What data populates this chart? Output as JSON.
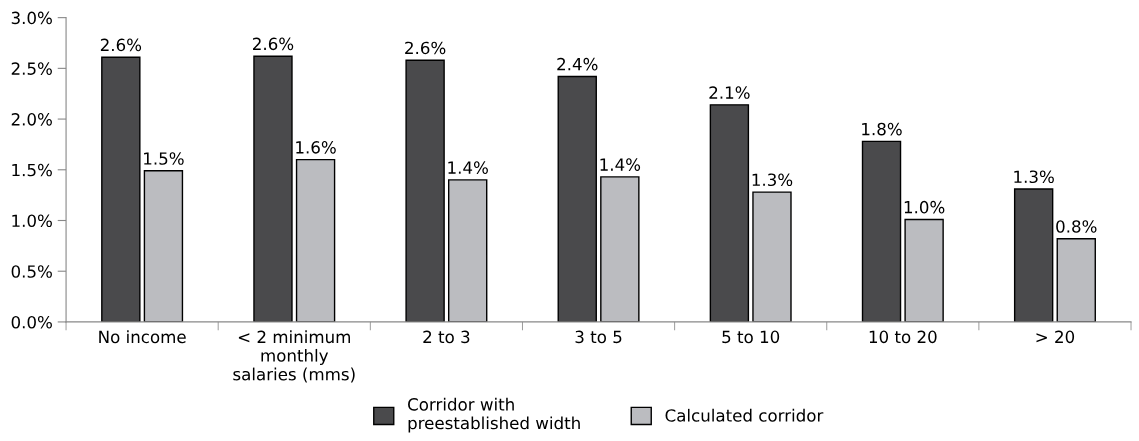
{
  "chart_data": {
    "type": "bar",
    "categories": [
      "No income",
      "< 2 minimum\nmonthly\nsalaries (mms)",
      "2 to 3",
      "3 to 5",
      "5 to 10",
      "10 to 20",
      "> 20"
    ],
    "series": [
      {
        "name": "Corridor with\npreestablished width",
        "color": "#4a4a4c",
        "values": [
          2.61,
          2.62,
          2.58,
          2.42,
          2.14,
          1.78,
          1.31
        ],
        "value_labels": [
          "2.6%",
          "2.6%",
          "2.6%",
          "2.4%",
          "2.1%",
          "1.8%",
          "1.3%"
        ]
      },
      {
        "name": "Calculated corridor",
        "color": "#bbbcc0",
        "values": [
          1.49,
          1.6,
          1.4,
          1.43,
          1.28,
          1.01,
          0.82
        ],
        "value_labels": [
          "1.5%",
          "1.6%",
          "1.4%",
          "1.4%",
          "1.3%",
          "1.0%",
          "0.8%"
        ]
      }
    ],
    "ylim": [
      0,
      3
    ],
    "yticks": [
      {
        "value": 0,
        "label": "0.0%"
      },
      {
        "value": 0.5,
        "label": "0.5%"
      },
      {
        "value": 1,
        "label": "1.0%"
      },
      {
        "value": 1.5,
        "label": "1.5%"
      },
      {
        "value": 2,
        "label": "2.0%"
      },
      {
        "value": 2.5,
        "label": "2.5%"
      },
      {
        "value": 3,
        "label": "3.0%"
      }
    ],
    "grid": false,
    "legend": "bottom"
  }
}
